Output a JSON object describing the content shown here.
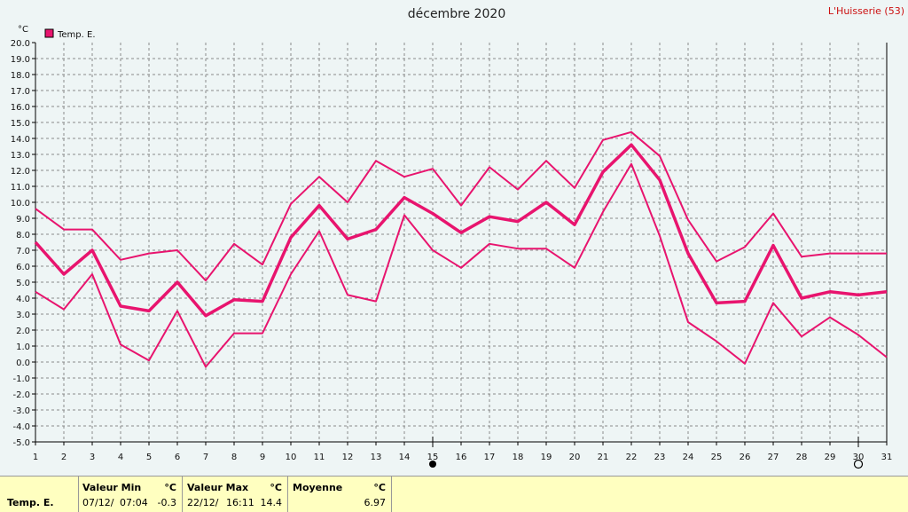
{
  "header": {
    "title": "décembre 2020",
    "station": "L'Huisserie (53)",
    "unit": "°C"
  },
  "legend": {
    "label": "Temp. E.",
    "color": "#e8146e"
  },
  "chart_data": {
    "type": "line",
    "title": "décembre 2020",
    "ylabel": "°C",
    "ylim": [
      -5,
      20
    ],
    "ytick_step": 1,
    "grid": true,
    "legend_position": "top-left",
    "x": [
      1,
      2,
      3,
      4,
      5,
      6,
      7,
      8,
      9,
      10,
      11,
      12,
      13,
      14,
      15,
      16,
      17,
      18,
      19,
      20,
      21,
      22,
      23,
      24,
      25,
      26,
      27,
      28,
      29,
      30,
      31
    ],
    "series": [
      {
        "role": "max",
        "values": [
          9.6,
          8.3,
          8.3,
          6.4,
          6.8,
          7.0,
          5.1,
          7.4,
          6.1,
          9.9,
          11.6,
          10.0,
          12.6,
          11.6,
          12.1,
          9.8,
          12.2,
          10.8,
          12.6,
          10.9,
          13.9,
          14.4,
          12.9,
          8.9,
          6.3,
          7.2,
          9.3,
          6.6,
          6.8,
          6.8,
          6.8
        ],
        "color": "#e8146e",
        "width": 2
      },
      {
        "role": "mean",
        "values": [
          7.5,
          5.5,
          7.0,
          3.5,
          3.2,
          5.0,
          2.9,
          3.9,
          3.8,
          7.8,
          9.8,
          7.7,
          8.3,
          10.3,
          9.3,
          8.1,
          9.1,
          8.8,
          10.0,
          8.6,
          11.9,
          13.6,
          11.4,
          6.8,
          3.7,
          3.8,
          7.3,
          4.0,
          4.4,
          4.2,
          4.4
        ],
        "color": "#e8146e",
        "width": 3.5
      },
      {
        "role": "min",
        "values": [
          4.4,
          3.3,
          5.5,
          1.1,
          0.1,
          3.2,
          -0.3,
          1.8,
          1.8,
          5.5,
          8.2,
          4.2,
          3.8,
          9.2,
          7.0,
          5.9,
          7.4,
          7.1,
          7.1,
          5.9,
          9.4,
          12.4,
          7.9,
          2.5,
          1.3,
          -0.1,
          3.7,
          1.6,
          2.8,
          1.7,
          0.3
        ],
        "color": "#e8146e",
        "width": 2
      }
    ],
    "markers": [
      {
        "day": 15,
        "symbol": "filled-circle"
      },
      {
        "day": 30,
        "symbol": "open-circle"
      }
    ]
  },
  "summary": {
    "row_label": "Temp. E.",
    "min": {
      "header": "Valeur Min",
      "unit": "°C",
      "date": "07/12/",
      "time": "07:04",
      "value": "-0.3"
    },
    "max": {
      "header": "Valeur Max",
      "unit": "°C",
      "date": "22/12/",
      "time": "16:11",
      "value": "14.4"
    },
    "mean": {
      "header": "Moyenne",
      "unit": "°C",
      "value": "6.97"
    }
  }
}
